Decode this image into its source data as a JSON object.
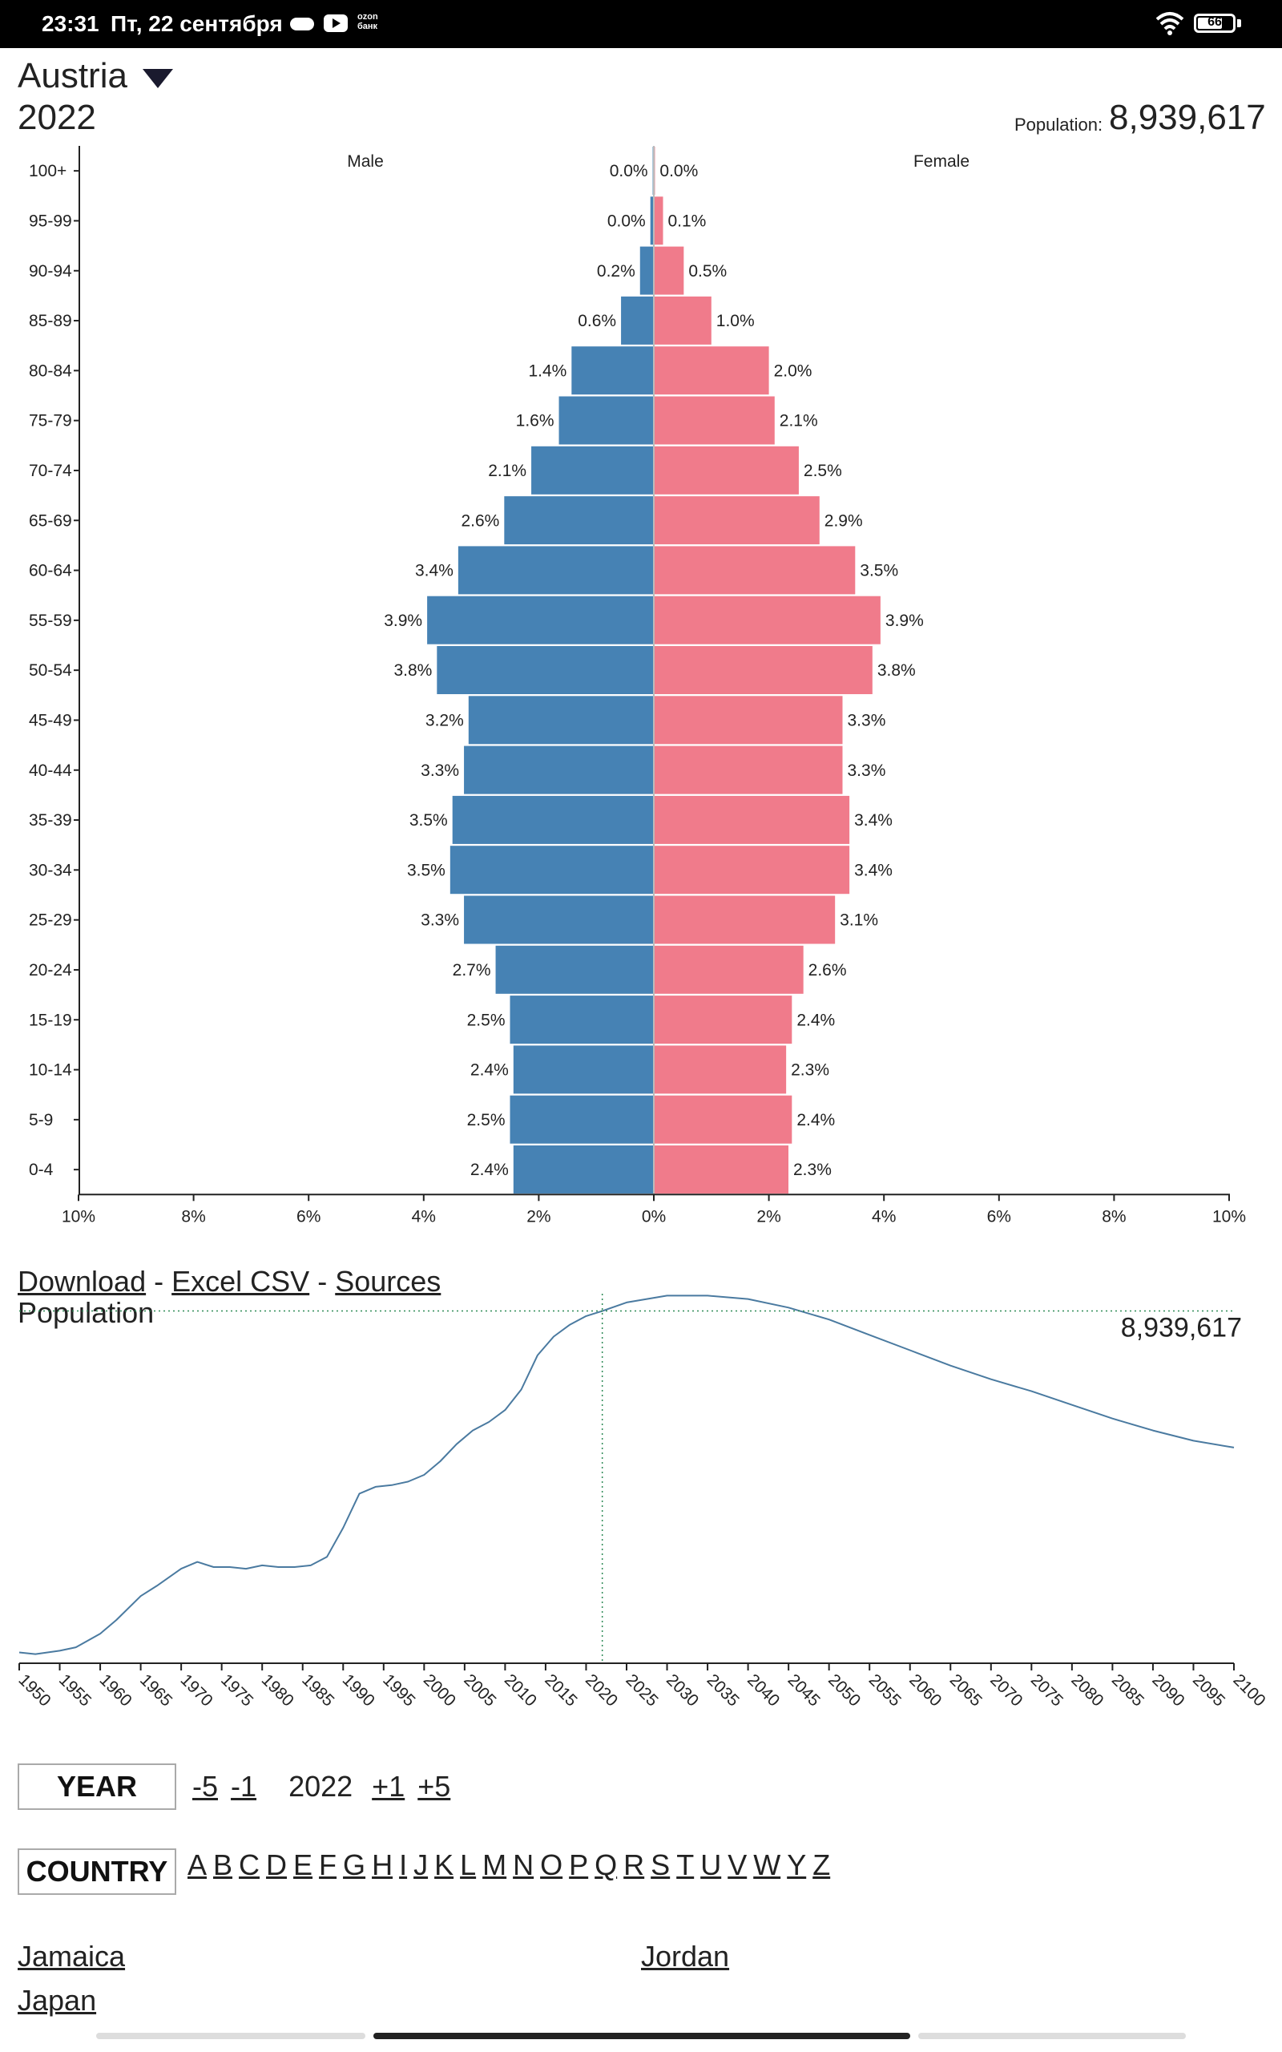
{
  "status": {
    "time": "23:31",
    "date": "Пт, 22 сентября",
    "ozon_line1": "ozon",
    "ozon_line2": "банк",
    "battery": "66"
  },
  "header": {
    "country": "Austria",
    "year": "2022",
    "population_label": "Population:",
    "population_value": "8,939,617"
  },
  "chart_data": [
    {
      "type": "bar",
      "orientation": "horizontal",
      "male_label": "Male",
      "female_label": "Female",
      "categories": [
        "100+",
        "95-99",
        "90-94",
        "85-89",
        "80-84",
        "75-79",
        "70-74",
        "65-69",
        "60-64",
        "55-59",
        "50-54",
        "45-49",
        "40-44",
        "35-39",
        "30-34",
        "25-29",
        "20-24",
        "15-19",
        "10-14",
        "5-9",
        "0-4"
      ],
      "series": [
        {
          "name": "Male",
          "color": "#4682b4",
          "values": [
            0.0,
            0.0,
            0.2,
            0.6,
            1.4,
            1.6,
            2.1,
            2.6,
            3.4,
            3.9,
            3.8,
            3.2,
            3.3,
            3.5,
            3.5,
            3.3,
            2.7,
            2.5,
            2.4,
            2.5,
            2.4
          ]
        },
        {
          "name": "Female",
          "color": "#f07b8b",
          "values": [
            0.0,
            0.1,
            0.5,
            1.0,
            2.0,
            2.1,
            2.5,
            2.9,
            3.5,
            3.9,
            3.8,
            3.3,
            3.3,
            3.4,
            3.4,
            3.1,
            2.6,
            2.4,
            2.3,
            2.4,
            2.3
          ]
        }
      ],
      "bar_lengths": {
        "male": [
          0.02,
          0.06,
          0.24,
          0.57,
          1.43,
          1.65,
          2.13,
          2.6,
          3.4,
          3.94,
          3.77,
          3.22,
          3.3,
          3.5,
          3.54,
          3.3,
          2.75,
          2.5,
          2.44,
          2.5,
          2.44
        ],
        "female": [
          0.02,
          0.16,
          0.52,
          1.0,
          2.0,
          2.1,
          2.52,
          2.88,
          3.5,
          3.94,
          3.8,
          3.28,
          3.28,
          3.4,
          3.4,
          3.15,
          2.6,
          2.4,
          2.3,
          2.4,
          2.34
        ]
      },
      "xlim": [
        -10,
        10
      ],
      "xticks": [
        "10%",
        "8%",
        "6%",
        "4%",
        "2%",
        "0%",
        "2%",
        "4%",
        "6%",
        "8%",
        "10%"
      ],
      "xtick_values": [
        -10,
        -8,
        -6,
        -4,
        -2,
        0,
        2,
        4,
        6,
        8,
        10
      ]
    },
    {
      "type": "line",
      "title": "Population",
      "x": [
        1950,
        1952,
        1955,
        1957,
        1960,
        1962,
        1965,
        1967,
        1970,
        1972,
        1974,
        1976,
        1978,
        1980,
        1982,
        1984,
        1986,
        1988,
        1990,
        1992,
        1994,
        1996,
        1998,
        2000,
        2002,
        2004,
        2006,
        2008,
        2010,
        2012,
        2014,
        2016,
        2018,
        2020,
        2022,
        2025,
        2030,
        2035,
        2040,
        2045,
        2050,
        2055,
        2060,
        2065,
        2070,
        2075,
        2080,
        2085,
        2090,
        2095,
        2100
      ],
      "y": [
        6.94,
        6.93,
        6.95,
        6.97,
        7.05,
        7.13,
        7.27,
        7.33,
        7.43,
        7.47,
        7.44,
        7.44,
        7.43,
        7.45,
        7.44,
        7.44,
        7.45,
        7.5,
        7.67,
        7.87,
        7.91,
        7.92,
        7.94,
        7.98,
        8.06,
        8.16,
        8.24,
        8.29,
        8.36,
        8.48,
        8.68,
        8.79,
        8.86,
        8.91,
        8.94,
        8.99,
        9.03,
        9.03,
        9.01,
        8.96,
        8.89,
        8.8,
        8.71,
        8.62,
        8.54,
        8.47,
        8.39,
        8.31,
        8.24,
        8.18,
        8.14
      ],
      "ylim": [
        6.9,
        9.06
      ],
      "xlim": [
        1950,
        2100
      ],
      "x_tick_labels": [
        "1950",
        "1955",
        "1960",
        "1965",
        "1970",
        "1975",
        "1980",
        "1985",
        "1990",
        "1995",
        "2000",
        "2005",
        "2010",
        "2015",
        "2020",
        "2025",
        "2030",
        "2035",
        "2040",
        "2045",
        "2050",
        "2055",
        "2060",
        "2065",
        "2070",
        "2075",
        "2080",
        "2085",
        "2090",
        "2095",
        "2100"
      ],
      "marker_year": 2022,
      "marker_label": "8,939,617",
      "color": "#4a7aa0"
    }
  ],
  "links": {
    "download": "Download",
    "sep1": "-",
    "excel": "Excel CSV",
    "sep2": "-",
    "sources": "Sources"
  },
  "controls": {
    "year_label": "YEAR",
    "minus5": "-5",
    "minus1": "-1",
    "current_year": "2022",
    "plus1": "+1",
    "plus5": "+5",
    "country_label": "COUNTRY",
    "letters": [
      "A",
      "B",
      "C",
      "D",
      "E",
      "F",
      "G",
      "H",
      "I",
      "J",
      "K",
      "L",
      "M",
      "N",
      "O",
      "P",
      "Q",
      "R",
      "S",
      "T",
      "U",
      "V",
      "W",
      "Y",
      "Z"
    ]
  },
  "countries": [
    "Jamaica",
    "Jordan",
    "Japan"
  ]
}
